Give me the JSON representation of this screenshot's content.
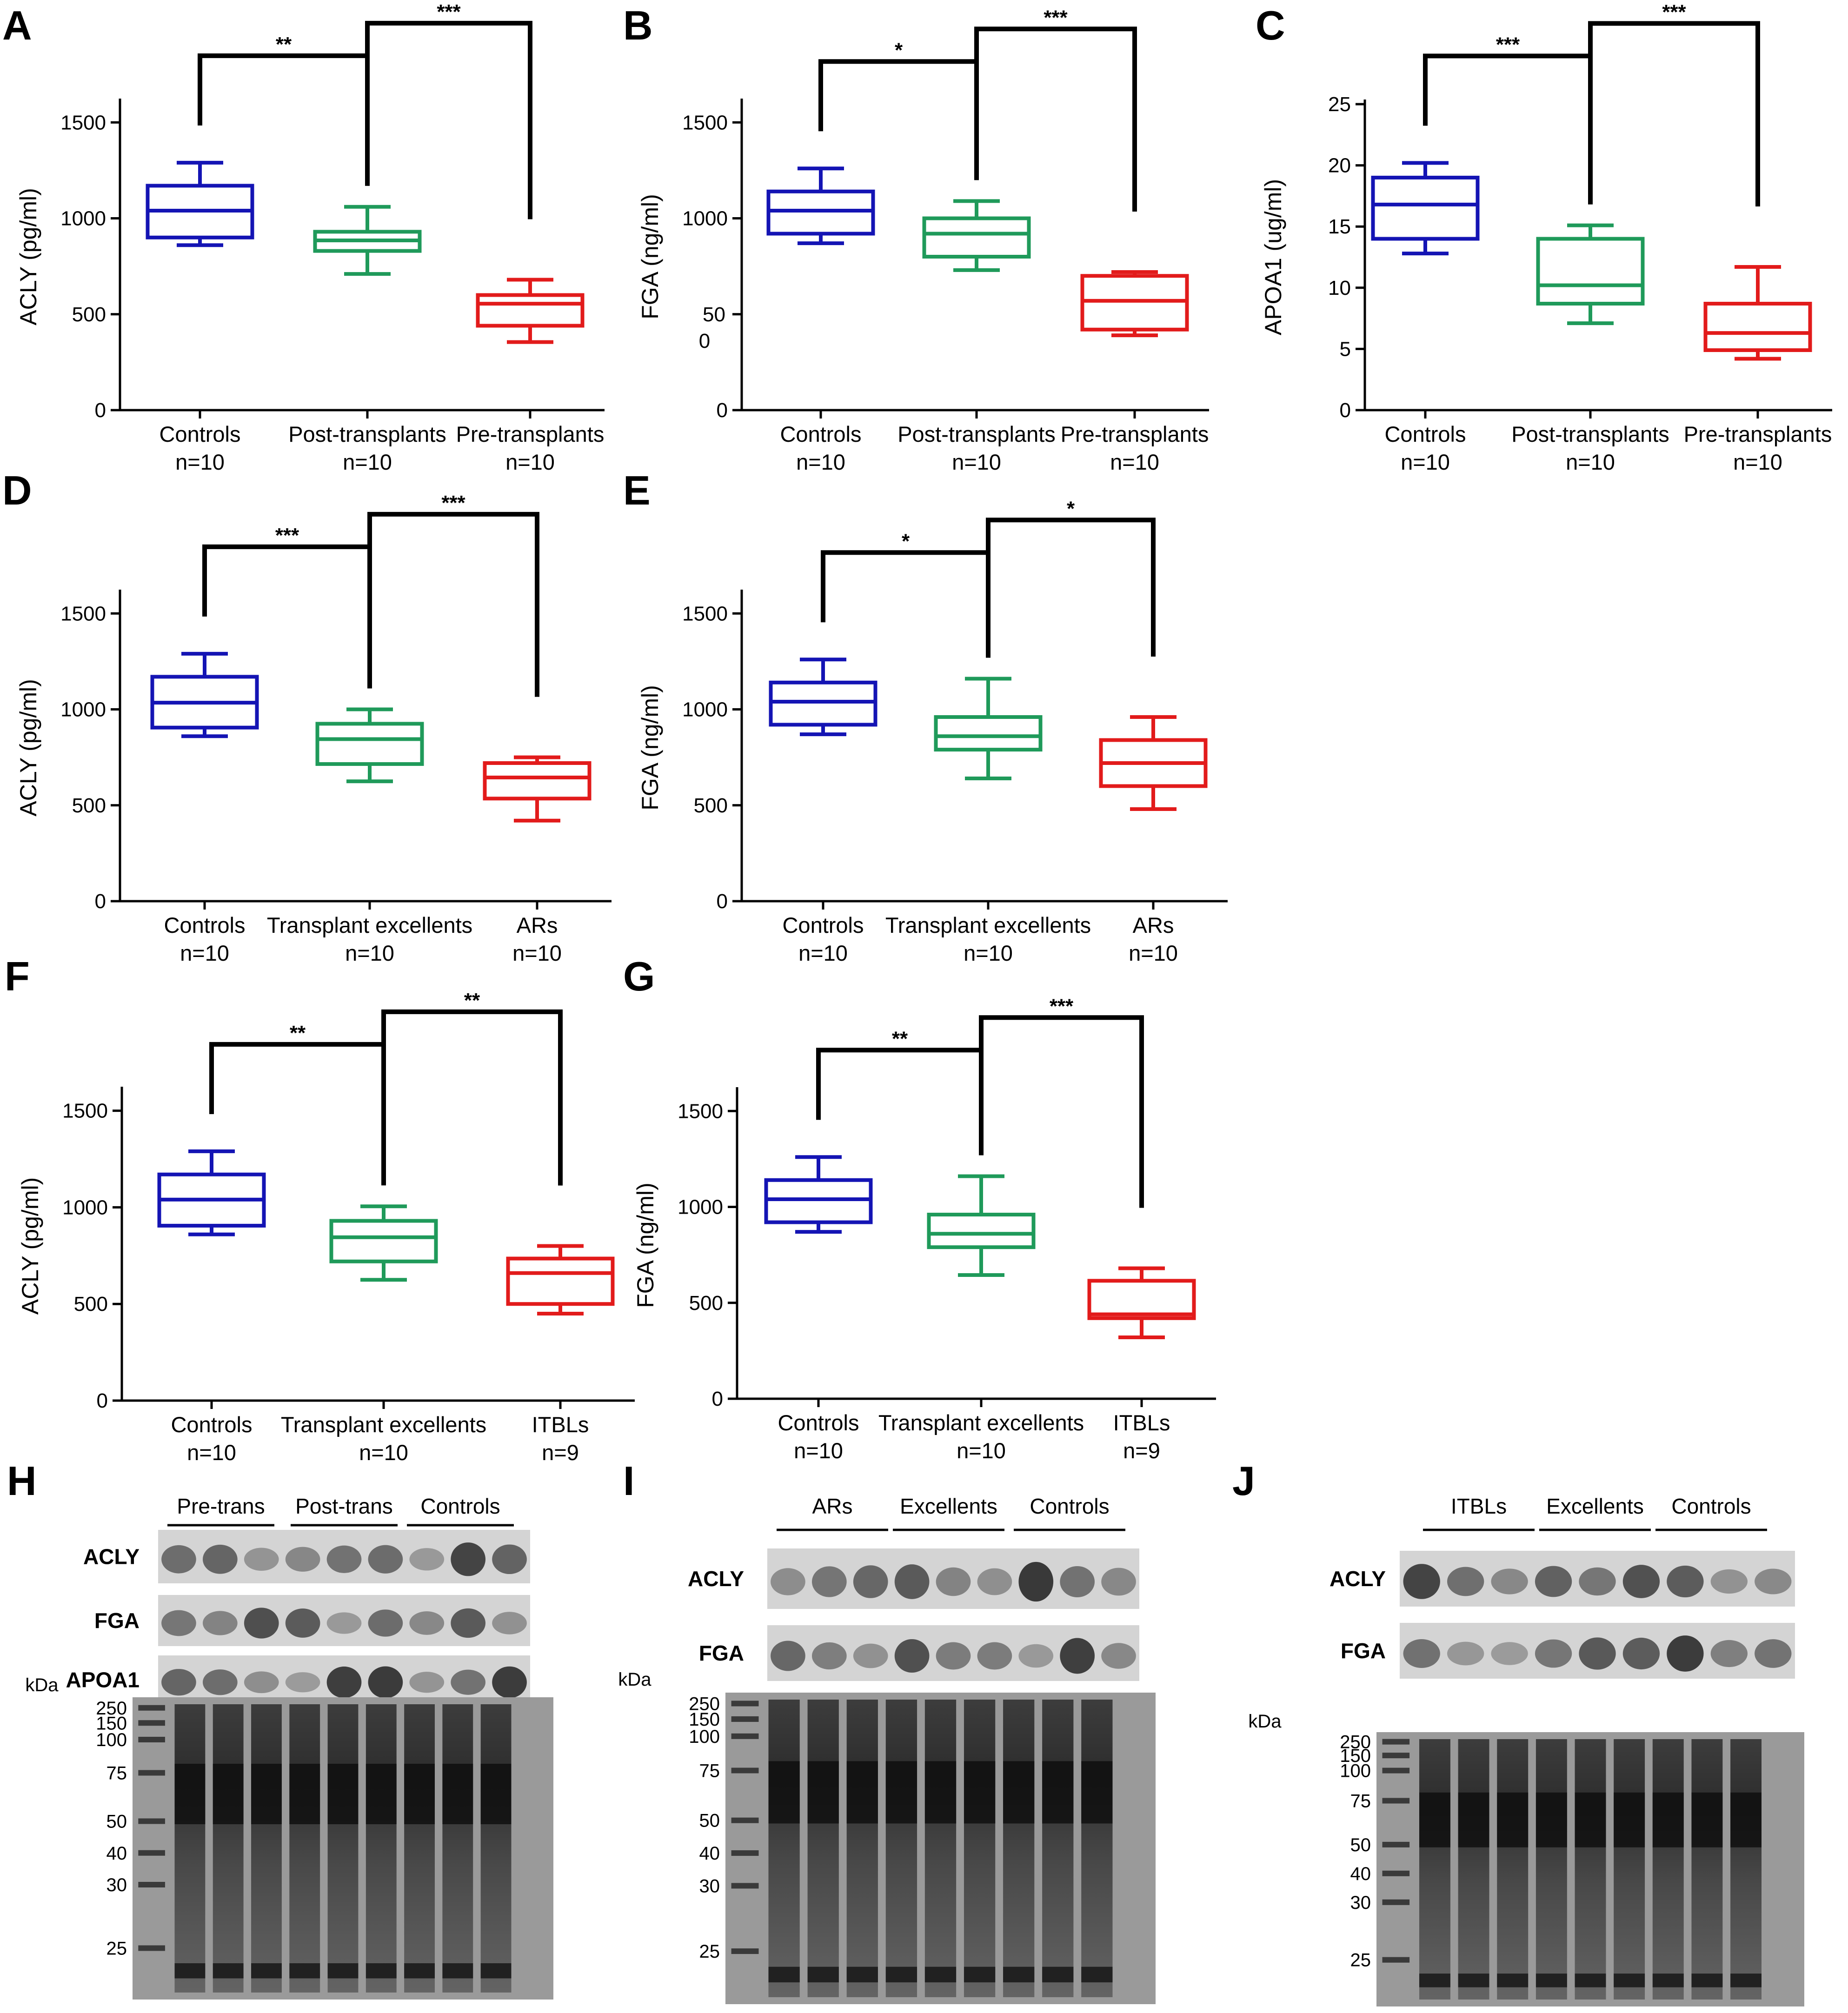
{
  "colors": {
    "controls": "#1414b4",
    "middle": "#1f9a5a",
    "third": "#e21b1b",
    "axis": "#000000"
  },
  "chart_data": [
    {
      "id": "A",
      "panel_label": "A",
      "type": "box",
      "ylabel": "ACLY (pg/ml)",
      "ylim": [
        0,
        1600
      ],
      "yticks": [
        "0",
        "500",
        "1000",
        "1500"
      ],
      "ytick_values": [
        0,
        500,
        1000,
        1500
      ],
      "groups": [
        {
          "name": "Controls",
          "n": "n=10",
          "color": "controls",
          "min": 860,
          "q1": 900,
          "median": 1040,
          "q3": 1170,
          "max": 1290
        },
        {
          "name": "Post-transplants",
          "n": "n=10",
          "color": "middle",
          "min": 710,
          "q1": 830,
          "median": 885,
          "q3": 930,
          "max": 1060
        },
        {
          "name": "Pre-transplants",
          "n": "n=10",
          "color": "third",
          "min": 355,
          "q1": 440,
          "median": 555,
          "q3": 600,
          "max": 680
        }
      ],
      "significance": [
        {
          "label": "**",
          "from": 0,
          "to": 1
        },
        {
          "label": "***",
          "from": 1,
          "to": 2
        }
      ]
    },
    {
      "id": "B",
      "panel_label": "B",
      "type": "box",
      "ylabel": "FGA (ng/ml)",
      "ylim": [
        0,
        1600
      ],
      "yticks": [
        "0",
        "50\n0",
        "1000",
        "1500"
      ],
      "ytick_values": [
        0,
        500,
        1000,
        1500
      ],
      "groups": [
        {
          "name": "Controls",
          "n": "n=10",
          "color": "controls",
          "min": 870,
          "q1": 920,
          "median": 1040,
          "q3": 1140,
          "max": 1260
        },
        {
          "name": "Post-transplants",
          "n": "n=10",
          "color": "middle",
          "min": 730,
          "q1": 800,
          "median": 920,
          "q3": 1000,
          "max": 1090
        },
        {
          "name": "Pre-transplants",
          "n": "n=10",
          "color": "third",
          "min": 390,
          "q1": 420,
          "median": 570,
          "q3": 700,
          "max": 720
        }
      ],
      "significance": [
        {
          "label": "*",
          "from": 0,
          "to": 1
        },
        {
          "label": "***",
          "from": 1,
          "to": 2
        }
      ]
    },
    {
      "id": "C",
      "panel_label": "C",
      "type": "box",
      "ylabel": "APOA1 (ug/ml)",
      "ylim": [
        0,
        25
      ],
      "yticks": [
        "0",
        "5",
        "10",
        "15",
        "20",
        "25"
      ],
      "ytick_values": [
        0,
        5,
        10,
        15,
        20,
        25
      ],
      "groups": [
        {
          "name": "Controls",
          "n": "n=10",
          "color": "controls",
          "min": 12.8,
          "q1": 14,
          "median": 16.8,
          "q3": 19,
          "max": 20.2
        },
        {
          "name": "Post-transplants",
          "n": "n=10",
          "color": "middle",
          "min": 7.1,
          "q1": 8.7,
          "median": 10.2,
          "q3": 14,
          "max": 15.1
        },
        {
          "name": "Pre-transplants",
          "n": "n=10",
          "color": "third",
          "min": 4.2,
          "q1": 4.9,
          "median": 6.3,
          "q3": 8.7,
          "max": 11.7
        }
      ],
      "significance": [
        {
          "label": "***",
          "from": 0,
          "to": 1
        },
        {
          "label": "***",
          "from": 1,
          "to": 2
        }
      ]
    },
    {
      "id": "D",
      "panel_label": "D",
      "type": "box",
      "ylabel": "ACLY (pg/ml)",
      "ylim": [
        0,
        1600
      ],
      "yticks": [
        "0",
        "500",
        "1000",
        "1500"
      ],
      "ytick_values": [
        0,
        500,
        1000,
        1500
      ],
      "groups": [
        {
          "name": "Controls",
          "n": "n=10",
          "color": "controls",
          "min": 860,
          "q1": 905,
          "median": 1035,
          "q3": 1170,
          "max": 1290
        },
        {
          "name": "Transplant excellents",
          "n": "n=10",
          "color": "middle",
          "min": 625,
          "q1": 715,
          "median": 845,
          "q3": 925,
          "max": 1000
        },
        {
          "name": "ARs",
          "n": "n=10",
          "color": "third",
          "min": 420,
          "q1": 535,
          "median": 645,
          "q3": 720,
          "max": 750
        }
      ],
      "significance": [
        {
          "label": "***",
          "from": 0,
          "to": 1
        },
        {
          "label": "***",
          "from": 1,
          "to": 2
        }
      ]
    },
    {
      "id": "E",
      "panel_label": "E",
      "type": "box",
      "ylabel": "FGA (ng/ml)",
      "ylim": [
        0,
        1600
      ],
      "yticks": [
        "0",
        "500",
        "1000",
        "1500"
      ],
      "ytick_values": [
        0,
        500,
        1000,
        1500
      ],
      "groups": [
        {
          "name": "Controls",
          "n": "n=10",
          "color": "controls",
          "min": 870,
          "q1": 920,
          "median": 1040,
          "q3": 1140,
          "max": 1260
        },
        {
          "name": "Transplant excellents",
          "n": "n=10",
          "color": "middle",
          "min": 640,
          "q1": 790,
          "median": 860,
          "q3": 960,
          "max": 1160
        },
        {
          "name": "ARs",
          "n": "n=10",
          "color": "third",
          "min": 480,
          "q1": 600,
          "median": 720,
          "q3": 840,
          "max": 960
        }
      ],
      "significance": [
        {
          "label": "*",
          "from": 0,
          "to": 1
        },
        {
          "label": "*",
          "from": 1,
          "to": 2
        }
      ]
    },
    {
      "id": "F",
      "panel_label": "F",
      "type": "box",
      "ylabel": "ACLY (pg/ml)",
      "ylim": [
        0,
        1600
      ],
      "yticks": [
        "0",
        "500",
        "1000",
        "1500"
      ],
      "ytick_values": [
        0,
        500,
        1000,
        1500
      ],
      "groups": [
        {
          "name": "Controls",
          "n": "n=10",
          "color": "controls",
          "min": 860,
          "q1": 905,
          "median": 1040,
          "q3": 1170,
          "max": 1290
        },
        {
          "name": "Transplant excellents",
          "n": "n=10",
          "color": "middle",
          "min": 625,
          "q1": 720,
          "median": 845,
          "q3": 930,
          "max": 1005
        },
        {
          "name": "ITBLs",
          "n": "n=9",
          "color": "third",
          "min": 450,
          "q1": 500,
          "median": 660,
          "q3": 735,
          "max": 800
        }
      ],
      "significance": [
        {
          "label": "**",
          "from": 0,
          "to": 1
        },
        {
          "label": "**",
          "from": 1,
          "to": 2
        }
      ]
    },
    {
      "id": "G",
      "panel_label": "G",
      "type": "box",
      "ylabel": "FGA (ng/ml)",
      "ylim": [
        0,
        1600
      ],
      "yticks": [
        "0",
        "500",
        "1000",
        "1500"
      ],
      "ytick_values": [
        0,
        500,
        1000,
        1500
      ],
      "groups": [
        {
          "name": "Controls",
          "n": "n=10",
          "color": "controls",
          "min": 870,
          "q1": 920,
          "median": 1040,
          "q3": 1140,
          "max": 1260
        },
        {
          "name": "Transplant excellents",
          "n": "n=10",
          "color": "middle",
          "min": 645,
          "q1": 790,
          "median": 860,
          "q3": 960,
          "max": 1160
        },
        {
          "name": "ITBLs",
          "n": "n=9",
          "color": "third",
          "min": 320,
          "q1": 420,
          "median": 440,
          "q3": 615,
          "max": 680
        }
      ],
      "significance": [
        {
          "label": "**",
          "from": 0,
          "to": 1
        },
        {
          "label": "***",
          "from": 1,
          "to": 2
        }
      ]
    }
  ],
  "blots": [
    {
      "id": "H",
      "panel_label": "H",
      "groups": [
        "Pre-trans",
        "Post-trans",
        "Controls"
      ],
      "rows": [
        "ACLY",
        "FGA",
        "APOA1"
      ],
      "kda_label": "kDa",
      "markers": [
        "250",
        "150",
        "100",
        "75",
        "50",
        "40",
        "30",
        "25"
      ]
    },
    {
      "id": "I",
      "panel_label": "I",
      "groups": [
        "ARs",
        "Excellents",
        "Controls"
      ],
      "rows": [
        "ACLY",
        "FGA"
      ],
      "kda_label": "kDa",
      "markers": [
        "250",
        "150",
        "100",
        "75",
        "50",
        "40",
        "30",
        "25"
      ]
    },
    {
      "id": "J",
      "panel_label": "J",
      "groups": [
        "ITBLs",
        "Excellents",
        "Controls"
      ],
      "rows": [
        "ACLY",
        "FGA"
      ],
      "kda_label": "kDa",
      "markers": [
        "250",
        "150",
        "100",
        "75",
        "50",
        "40",
        "30",
        "25"
      ]
    }
  ]
}
